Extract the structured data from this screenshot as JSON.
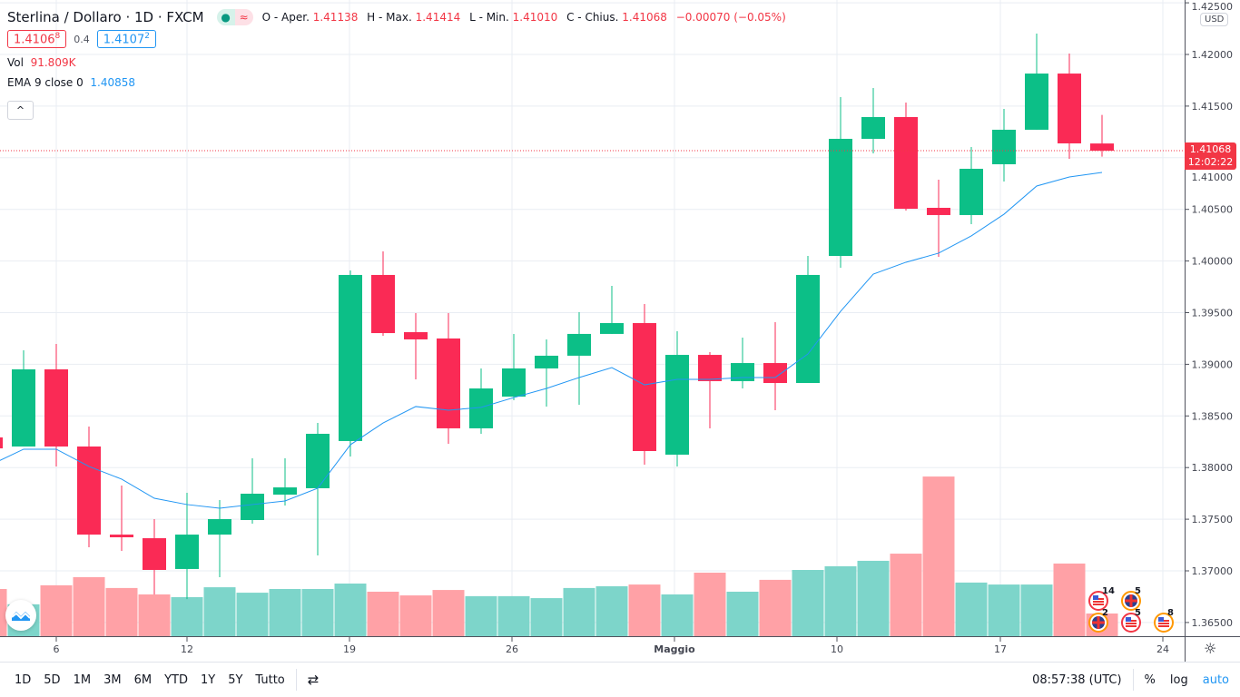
{
  "header": {
    "symbol": "Sterlina / Dollaro · 1D · FXCM",
    "o_label": "O - Aper.",
    "o": "1.41138",
    "h_label": "H - Max.",
    "h": "1.41414",
    "l_label": "L - Min.",
    "l": "1.41010",
    "c_label": "C - Chius.",
    "c": "1.41068",
    "change": "−0.00070 (−0.05%)",
    "sell": "1.4106",
    "sell_sup": "8",
    "spread": "0.4",
    "buy": "1.4107",
    "buy_sup": "2",
    "vol_label": "Vol",
    "vol": "91.809K",
    "ema_label": "EMA 9 close 0",
    "ema": "1.40858",
    "status_dot": "●",
    "status_wave": "≈",
    "collapse": "^"
  },
  "price_axis": {
    "currency": "USD",
    "ticks": [
      "1.42500",
      "1.42000",
      "1.41500",
      "1.41000",
      "1.40500",
      "1.40000",
      "1.39500",
      "1.39000",
      "1.38500",
      "1.38000",
      "1.37500",
      "1.37000",
      "1.36500"
    ],
    "last_price": "1.41068",
    "countdown": "12:02:22"
  },
  "time_axis": {
    "ticks": [
      "6",
      "12",
      "19",
      "26",
      "Maggio",
      "10",
      "17",
      "24"
    ]
  },
  "events": [
    {
      "type": "us",
      "count": "14"
    },
    {
      "type": "uk",
      "count": "5"
    },
    {
      "type": "uk",
      "count": "2"
    },
    {
      "type": "us",
      "count": "5"
    },
    {
      "type": "us",
      "count": "8"
    }
  ],
  "toolbar": {
    "ranges": [
      "1D",
      "5D",
      "1M",
      "3M",
      "6M",
      "YTD",
      "1Y",
      "5Y",
      "Tutto"
    ],
    "time": "08:57:38 (UTC)",
    "percent": "%",
    "log": "log",
    "auto": "auto"
  },
  "colors": {
    "up": "#0cbf87",
    "down": "#fa2a55",
    "vol_up": "#7dd5ca",
    "vol_down": "#ffa1a6",
    "ema": "#2196f3",
    "auto": "#2196f3"
  },
  "chart_data": {
    "type": "candlestick",
    "ylim": [
      1.365,
      1.425
    ],
    "grid": true,
    "candles": [
      {
        "date": "2021-04-02",
        "o": 1.38292,
        "h": 1.383,
        "l": 1.3818,
        "c": 1.38186,
        "v": 191000
      },
      {
        "date": "2021-04-05",
        "o": 1.38204,
        "h": 1.39135,
        "l": 1.38204,
        "c": 1.38951,
        "v": 129000
      },
      {
        "date": "2021-04-06",
        "o": 1.38951,
        "h": 1.39197,
        "l": 1.3801,
        "c": 1.38204,
        "v": 206000
      },
      {
        "date": "2021-04-07",
        "o": 1.38204,
        "h": 1.38397,
        "l": 1.37228,
        "c": 1.37351,
        "v": 239000
      },
      {
        "date": "2021-04-08",
        "o": 1.37351,
        "h": 1.37826,
        "l": 1.37193,
        "c": 1.37325,
        "v": 195000
      },
      {
        "date": "2021-04-09",
        "o": 1.37316,
        "h": 1.37501,
        "l": 1.36771,
        "c": 1.37009,
        "v": 169000
      },
      {
        "date": "2021-04-12",
        "o": 1.37018,
        "h": 1.37756,
        "l": 1.36727,
        "c": 1.37351,
        "v": 158000
      },
      {
        "date": "2021-04-13",
        "o": 1.37351,
        "h": 1.37685,
        "l": 1.36938,
        "c": 1.37501,
        "v": 198000
      },
      {
        "date": "2021-04-14",
        "o": 1.37492,
        "h": 1.3809,
        "l": 1.37457,
        "c": 1.37747,
        "v": 176000
      },
      {
        "date": "2021-04-15",
        "o": 1.37738,
        "h": 1.3809,
        "l": 1.37633,
        "c": 1.37808,
        "v": 191000
      },
      {
        "date": "2021-04-16",
        "o": 1.378,
        "h": 1.38432,
        "l": 1.37149,
        "c": 1.38327,
        "v": 191000
      },
      {
        "date": "2021-04-19",
        "o": 1.38257,
        "h": 1.39909,
        "l": 1.38107,
        "c": 1.39865,
        "v": 213000
      },
      {
        "date": "2021-04-20",
        "o": 1.39865,
        "h": 1.40093,
        "l": 1.39276,
        "c": 1.39302,
        "v": 180000
      },
      {
        "date": "2021-04-21",
        "o": 1.39311,
        "h": 1.39496,
        "l": 1.38854,
        "c": 1.39241,
        "v": 165000
      },
      {
        "date": "2021-04-22",
        "o": 1.3925,
        "h": 1.39496,
        "l": 1.3823,
        "c": 1.3838,
        "v": 187000
      },
      {
        "date": "2021-04-23",
        "o": 1.3838,
        "h": 1.3896,
        "l": 1.38327,
        "c": 1.38766,
        "v": 162000
      },
      {
        "date": "2021-04-26",
        "o": 1.38687,
        "h": 1.39294,
        "l": 1.38652,
        "c": 1.3896,
        "v": 162000
      },
      {
        "date": "2021-04-27",
        "o": 1.3896,
        "h": 1.39241,
        "l": 1.3859,
        "c": 1.39083,
        "v": 154000
      },
      {
        "date": "2021-04-28",
        "o": 1.39083,
        "h": 1.39504,
        "l": 1.38608,
        "c": 1.39294,
        "v": 195000
      },
      {
        "date": "2021-04-29",
        "o": 1.39294,
        "h": 1.39759,
        "l": 1.39294,
        "c": 1.39399,
        "v": 202000
      },
      {
        "date": "2021-04-30",
        "o": 1.39399,
        "h": 1.39583,
        "l": 1.38028,
        "c": 1.3816,
        "v": 209000
      },
      {
        "date": "2021-05-03",
        "o": 1.38125,
        "h": 1.3932,
        "l": 1.3801,
        "c": 1.39091,
        "v": 169000
      },
      {
        "date": "2021-05-04",
        "o": 1.39091,
        "h": 1.39118,
        "l": 1.3838,
        "c": 1.38837,
        "v": 257000
      },
      {
        "date": "2021-05-05",
        "o": 1.38837,
        "h": 1.39258,
        "l": 1.38766,
        "c": 1.39012,
        "v": 180000
      },
      {
        "date": "2021-05-06",
        "o": 1.39012,
        "h": 1.39408,
        "l": 1.38555,
        "c": 1.38819,
        "v": 228000
      },
      {
        "date": "2021-05-07",
        "o": 1.38819,
        "h": 1.40049,
        "l": 1.38819,
        "c": 1.39865,
        "v": 268000
      },
      {
        "date": "2021-05-10",
        "o": 1.40049,
        "h": 1.41587,
        "l": 1.39935,
        "c": 1.41183,
        "v": 283000
      },
      {
        "date": "2021-05-11",
        "o": 1.41183,
        "h": 1.41675,
        "l": 1.41042,
        "c": 1.41394,
        "v": 305000
      },
      {
        "date": "2021-05-12",
        "o": 1.41394,
        "h": 1.41534,
        "l": 1.40489,
        "c": 1.40506,
        "v": 334000
      },
      {
        "date": "2021-05-13",
        "o": 1.40515,
        "h": 1.40787,
        "l": 1.4004,
        "c": 1.40445,
        "v": 646000
      },
      {
        "date": "2021-05-14",
        "o": 1.40445,
        "h": 1.41104,
        "l": 1.40357,
        "c": 1.40893,
        "v": 217000
      },
      {
        "date": "2021-05-17",
        "o": 1.40937,
        "h": 1.41473,
        "l": 1.4077,
        "c": 1.41271,
        "v": 209000
      },
      {
        "date": "2021-05-18",
        "o": 1.41271,
        "h": 1.42202,
        "l": 1.41271,
        "c": 1.41815,
        "v": 209000
      },
      {
        "date": "2021-05-19",
        "o": 1.41815,
        "h": 1.42009,
        "l": 1.40989,
        "c": 1.41139,
        "v": 294000
      },
      {
        "date": "2021-05-20",
        "o": 1.41138,
        "h": 1.41414,
        "l": 1.4101,
        "c": 1.41068,
        "v": 91809
      }
    ],
    "ema": [
      1.38028,
      1.38178,
      1.38178,
      1.38011,
      1.37888,
      1.37703,
      1.37642,
      1.37606,
      1.37642,
      1.37677,
      1.378,
      1.38221,
      1.38432,
      1.38591,
      1.38555,
      1.38583,
      1.38678,
      1.38766,
      1.38872,
      1.38968,
      1.38801,
      1.38854,
      1.38854,
      1.38872,
      1.38872,
      1.391,
      1.39513,
      1.39873,
      1.39988,
      1.40076,
      1.40243,
      1.40453,
      1.40726,
      1.40814,
      1.40858
    ]
  }
}
